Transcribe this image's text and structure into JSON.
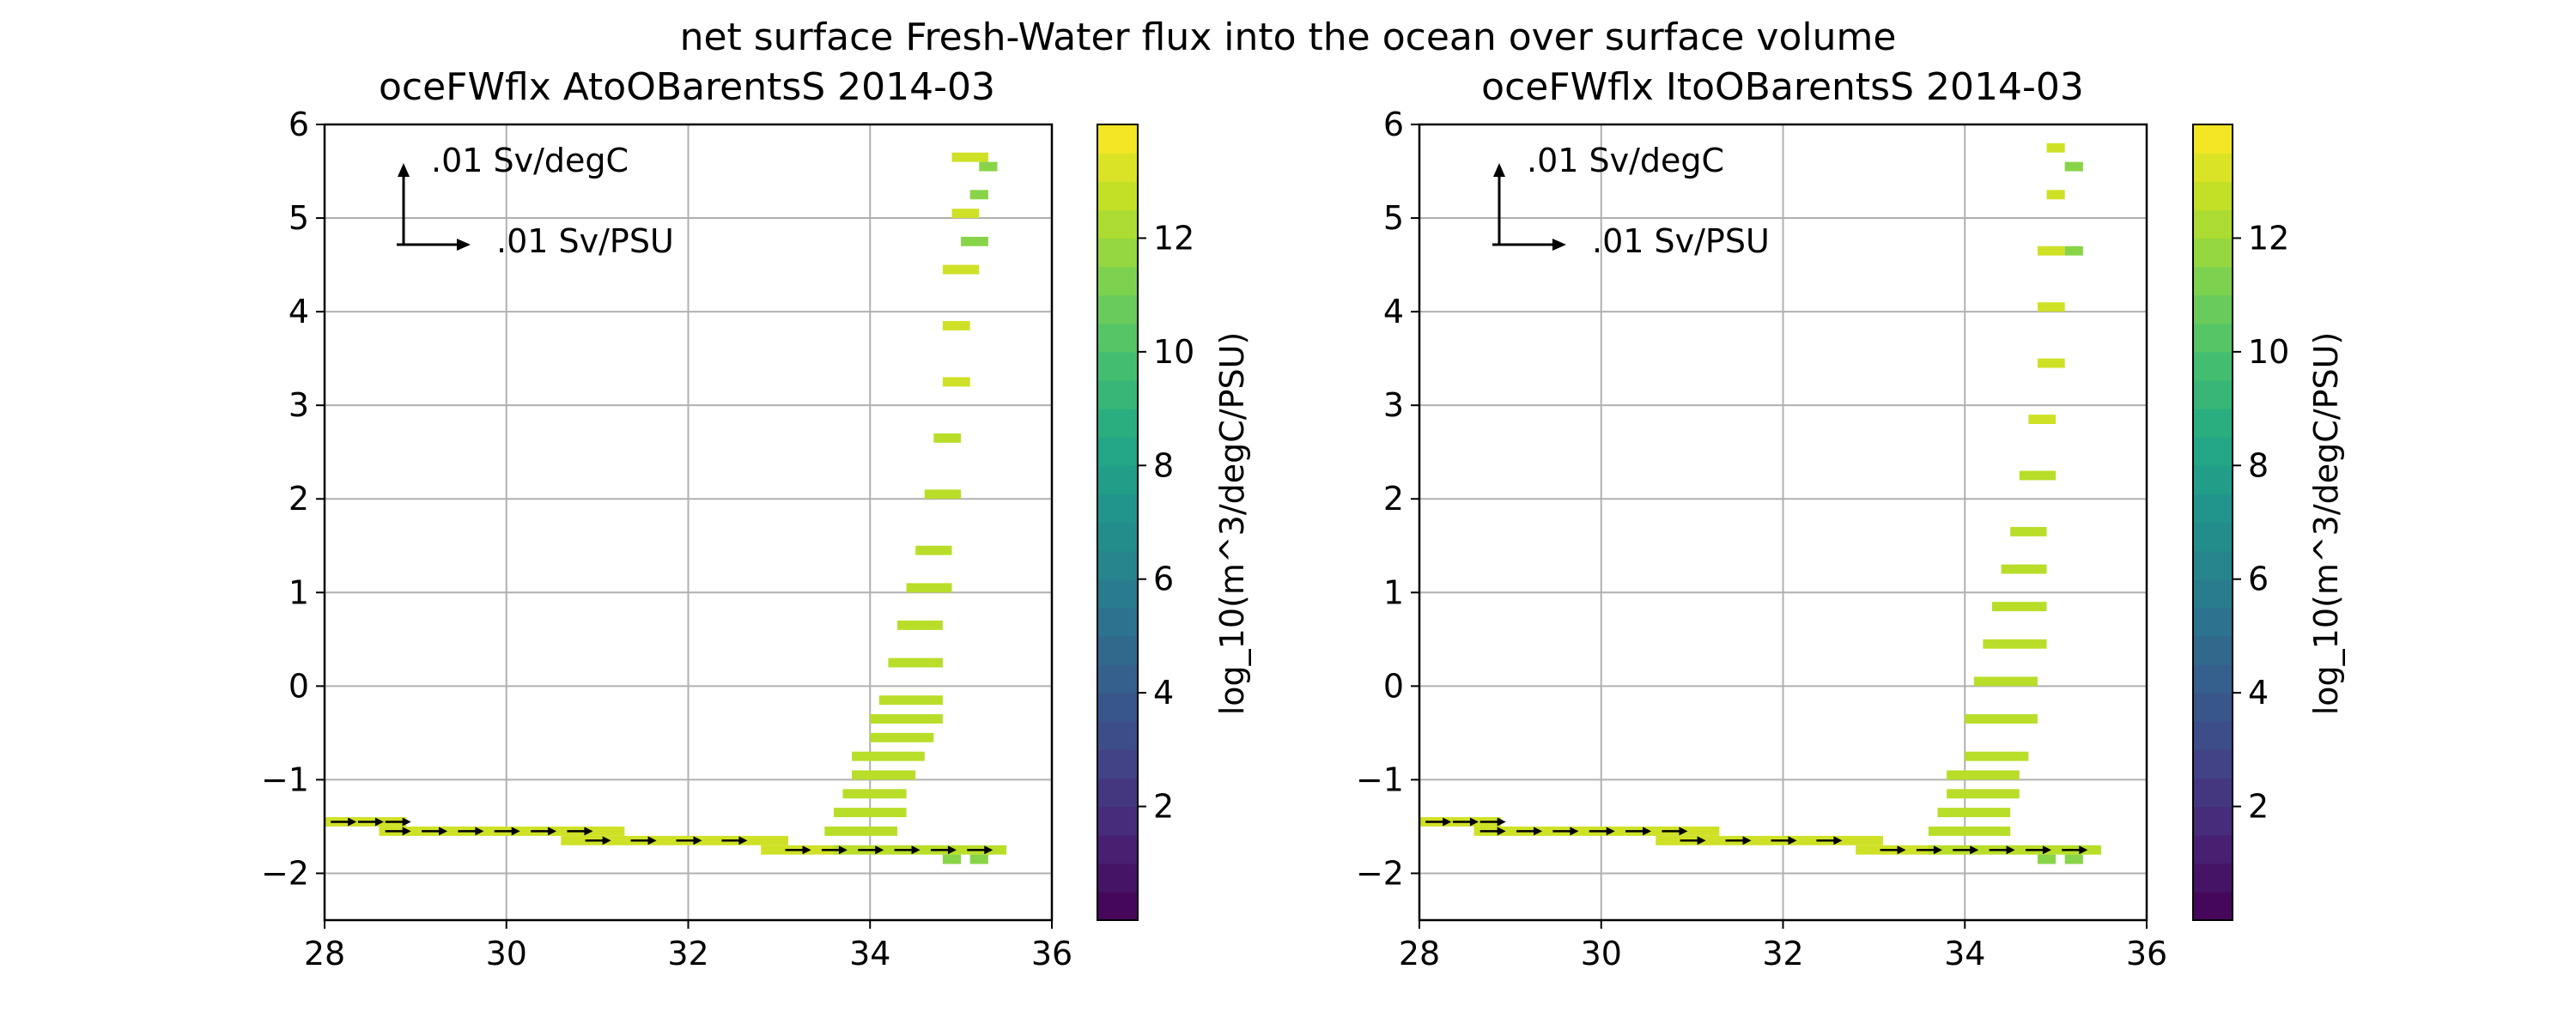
{
  "figure": {
    "suptitle": "net surface Fresh-Water flux into the ocean over surface volume"
  },
  "chart_data": [
    {
      "type": "heatmap",
      "title": "oceFWflx AtoOBarentsS 2014-03",
      "xlabel": "",
      "ylabel": "",
      "xlim": [
        28,
        36
      ],
      "ylim": [
        -2.5,
        6
      ],
      "xticks": [
        "28",
        "30",
        "32",
        "34",
        "36"
      ],
      "yticks": [
        "−2",
        "−1",
        "0",
        "1",
        "2",
        "3",
        "4",
        "5",
        "6"
      ],
      "grid": true,
      "colormap": "viridis",
      "colorbar": {
        "label": "log_10(m^3/degC/PSU)",
        "range": [
          0,
          14
        ],
        "ticks": [
          "2",
          "4",
          "6",
          "8",
          "10",
          "12"
        ]
      },
      "quiver_key": {
        "y_label": ".01 Sv/degC",
        "x_label": ".01 Sv/PSU"
      },
      "cell_size": [
        0.1,
        0.1
      ],
      "cells": [
        {
          "x": [
            28.0,
            28.8
          ],
          "y": -1.5,
          "v": 13.0
        },
        {
          "x": [
            28.6,
            31.2
          ],
          "y": -1.6,
          "v": 13.0
        },
        {
          "x": [
            30.6,
            33.0
          ],
          "y": -1.7,
          "v": 13.0
        },
        {
          "x": [
            32.8,
            33.6
          ],
          "y": -1.8,
          "v": 13.0
        },
        {
          "x": [
            33.6,
            35.4
          ],
          "y": -1.8,
          "v": 12.5
        },
        {
          "x": [
            34.8,
            34.9
          ],
          "y": -1.9,
          "v": 11.5
        },
        {
          "x": [
            35.1,
            35.2
          ],
          "y": -1.9,
          "v": 11.5
        },
        {
          "x": [
            33.5,
            34.2
          ],
          "y": -1.6,
          "v": 12.5
        },
        {
          "x": [
            33.6,
            34.3
          ],
          "y": -1.4,
          "v": 12.5
        },
        {
          "x": [
            33.7,
            34.3
          ],
          "y": -1.2,
          "v": 12.5
        },
        {
          "x": [
            33.8,
            34.4
          ],
          "y": -1.0,
          "v": 12.5
        },
        {
          "x": [
            33.8,
            34.5
          ],
          "y": -0.8,
          "v": 12.5
        },
        {
          "x": [
            34.0,
            34.6
          ],
          "y": -0.6,
          "v": 12.5
        },
        {
          "x": [
            34.0,
            34.7
          ],
          "y": -0.4,
          "v": 12.5
        },
        {
          "x": [
            34.1,
            34.7
          ],
          "y": -0.2,
          "v": 12.5
        },
        {
          "x": [
            34.2,
            34.7
          ],
          "y": 0.2,
          "v": 12.5
        },
        {
          "x": [
            34.3,
            34.7
          ],
          "y": 0.6,
          "v": 12.5
        },
        {
          "x": [
            34.4,
            34.8
          ],
          "y": 1.0,
          "v": 12.5
        },
        {
          "x": [
            34.5,
            34.8
          ],
          "y": 1.4,
          "v": 12.5
        },
        {
          "x": [
            34.6,
            34.9
          ],
          "y": 2.0,
          "v": 12.5
        },
        {
          "x": [
            34.7,
            34.9
          ],
          "y": 2.6,
          "v": 12.5
        },
        {
          "x": [
            34.8,
            35.0
          ],
          "y": 3.2,
          "v": 13.0
        },
        {
          "x": [
            34.8,
            35.0
          ],
          "y": 3.8,
          "v": 13.0
        },
        {
          "x": [
            34.8,
            35.1
          ],
          "y": 4.4,
          "v": 13.0
        },
        {
          "x": [
            34.9,
            35.1
          ],
          "y": 5.0,
          "v": 13.0
        },
        {
          "x": [
            34.9,
            35.2
          ],
          "y": 5.6,
          "v": 13.0
        },
        {
          "x": [
            35.2,
            35.3
          ],
          "y": 5.5,
          "v": 11.5
        },
        {
          "x": [
            35.1,
            35.2
          ],
          "y": 5.2,
          "v": 11.5
        },
        {
          "x": [
            35.0,
            35.2
          ],
          "y": 4.7,
          "v": 11.5
        }
      ]
    },
    {
      "type": "heatmap",
      "title": "oceFWflx ItoOBarentsS 2014-03",
      "xlabel": "",
      "ylabel": "",
      "xlim": [
        28,
        36
      ],
      "ylim": [
        -2.5,
        6
      ],
      "xticks": [
        "28",
        "30",
        "32",
        "34",
        "36"
      ],
      "yticks": [
        "−2",
        "−1",
        "0",
        "1",
        "2",
        "3",
        "4",
        "5",
        "6"
      ],
      "grid": true,
      "colormap": "viridis",
      "colorbar": {
        "label": "log_10(m^3/degC/PSU)",
        "range": [
          0,
          14
        ],
        "ticks": [
          "2",
          "4",
          "6",
          "8",
          "10",
          "12"
        ]
      },
      "quiver_key": {
        "y_label": ".01 Sv/degC",
        "x_label": ".01 Sv/PSU"
      },
      "cell_size": [
        0.1,
        0.1
      ],
      "cells": [
        {
          "x": [
            28.0,
            28.8
          ],
          "y": -1.5,
          "v": 13.0
        },
        {
          "x": [
            28.6,
            31.2
          ],
          "y": -1.6,
          "v": 13.0
        },
        {
          "x": [
            30.6,
            33.0
          ],
          "y": -1.7,
          "v": 13.0
        },
        {
          "x": [
            32.8,
            33.6
          ],
          "y": -1.8,
          "v": 13.0
        },
        {
          "x": [
            33.6,
            35.4
          ],
          "y": -1.8,
          "v": 12.5
        },
        {
          "x": [
            34.8,
            34.9
          ],
          "y": -1.9,
          "v": 11.5
        },
        {
          "x": [
            35.1,
            35.2
          ],
          "y": -1.9,
          "v": 11.5
        },
        {
          "x": [
            33.6,
            34.4
          ],
          "y": -1.6,
          "v": 12.5
        },
        {
          "x": [
            33.7,
            34.4
          ],
          "y": -1.4,
          "v": 12.5
        },
        {
          "x": [
            33.8,
            34.5
          ],
          "y": -1.2,
          "v": 12.5
        },
        {
          "x": [
            33.8,
            34.5
          ],
          "y": -1.0,
          "v": 12.5
        },
        {
          "x": [
            34.0,
            34.6
          ],
          "y": -0.8,
          "v": 12.5
        },
        {
          "x": [
            34.0,
            34.7
          ],
          "y": -0.4,
          "v": 12.5
        },
        {
          "x": [
            34.1,
            34.7
          ],
          "y": 0.0,
          "v": 12.5
        },
        {
          "x": [
            34.2,
            34.8
          ],
          "y": 0.4,
          "v": 12.5
        },
        {
          "x": [
            34.3,
            34.8
          ],
          "y": 0.8,
          "v": 12.5
        },
        {
          "x": [
            34.4,
            34.8
          ],
          "y": 1.2,
          "v": 12.5
        },
        {
          "x": [
            34.5,
            34.8
          ],
          "y": 1.6,
          "v": 12.5
        },
        {
          "x": [
            34.6,
            34.9
          ],
          "y": 2.2,
          "v": 12.5
        },
        {
          "x": [
            34.7,
            34.9
          ],
          "y": 2.8,
          "v": 13.0
        },
        {
          "x": [
            34.8,
            35.0
          ],
          "y": 3.4,
          "v": 13.0
        },
        {
          "x": [
            34.8,
            35.0
          ],
          "y": 4.0,
          "v": 13.0
        },
        {
          "x": [
            34.8,
            35.0
          ],
          "y": 4.6,
          "v": 13.0
        },
        {
          "x": [
            34.9,
            35.0
          ],
          "y": 5.2,
          "v": 13.0
        },
        {
          "x": [
            34.9,
            35.0
          ],
          "y": 5.7,
          "v": 13.0
        },
        {
          "x": [
            35.1,
            35.2
          ],
          "y": 5.5,
          "v": 11.5
        },
        {
          "x": [
            35.1,
            35.2
          ],
          "y": 4.6,
          "v": 11.5
        }
      ]
    }
  ]
}
